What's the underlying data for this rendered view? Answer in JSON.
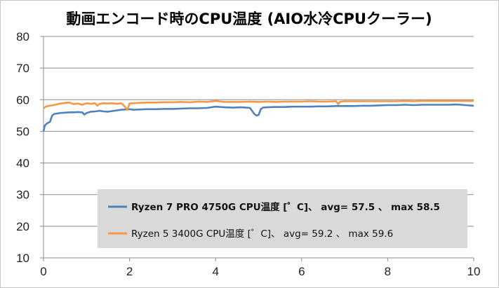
{
  "chart_data": {
    "type": "line",
    "title": "動画エンコード時のCPU温度 (AIO水冷CPUクーラー)",
    "xlabel": "",
    "ylabel": "",
    "xlim": [
      0,
      10
    ],
    "ylim": [
      10,
      80
    ],
    "x_ticks": [
      0,
      2,
      4,
      6,
      8,
      10
    ],
    "y_ticks": [
      10,
      20,
      30,
      40,
      50,
      60,
      70,
      80
    ],
    "grid": "horizontal",
    "legend_position": "bottom-right",
    "series": [
      {
        "name": "Ryzen 7 PRO 4750G CPU温度 [゜C]、 avg= 57.5 、 max 58.5",
        "color": "#4f81bd",
        "bold_legend": true,
        "x": [
          0,
          0.03,
          0.08,
          0.15,
          0.2,
          0.25,
          0.3,
          0.4,
          0.5,
          0.6,
          0.7,
          0.8,
          0.9,
          0.95,
          1.0,
          1.1,
          1.2,
          1.3,
          1.4,
          1.5,
          1.6,
          1.7,
          1.8,
          1.9,
          2.0,
          2.1,
          2.2,
          2.4,
          2.6,
          2.8,
          3.0,
          3.2,
          3.4,
          3.6,
          3.8,
          4.0,
          4.2,
          4.4,
          4.6,
          4.8,
          4.9,
          4.95,
          5.0,
          5.05,
          5.1,
          5.2,
          5.4,
          5.6,
          5.8,
          6.0,
          6.2,
          6.4,
          6.6,
          6.8,
          7.0,
          7.2,
          7.4,
          7.6,
          7.8,
          8.0,
          8.2,
          8.4,
          8.6,
          8.8,
          9.0,
          9.2,
          9.4,
          9.6,
          9.8,
          10.0
        ],
        "values": [
          50.0,
          51.8,
          52.5,
          53.0,
          55.0,
          55.5,
          55.6,
          55.8,
          55.9,
          56.0,
          56.0,
          56.1,
          56.0,
          55.3,
          55.8,
          56.2,
          56.3,
          56.5,
          56.3,
          56.2,
          56.4,
          56.6,
          56.8,
          56.9,
          57.0,
          56.8,
          56.9,
          57.0,
          57.0,
          57.1,
          57.1,
          57.2,
          57.3,
          57.3,
          57.4,
          57.8,
          57.6,
          57.5,
          57.6,
          57.4,
          55.5,
          55.0,
          55.2,
          57.0,
          57.5,
          57.6,
          57.7,
          57.7,
          57.8,
          57.8,
          57.8,
          57.9,
          57.9,
          58.0,
          58.0,
          58.0,
          58.1,
          58.1,
          58.2,
          58.3,
          58.3,
          58.4,
          58.3,
          58.4,
          58.4,
          58.4,
          58.4,
          58.5,
          58.3,
          58.1
        ]
      },
      {
        "name": "Ryzen 5 3400G CPU温度 [゜C]、 avg= 59.2 、 max 59.6",
        "color": "#f79646",
        "bold_legend": false,
        "x": [
          0,
          0.05,
          0.1,
          0.2,
          0.3,
          0.4,
          0.5,
          0.6,
          0.7,
          0.8,
          0.9,
          1.0,
          1.1,
          1.2,
          1.25,
          1.3,
          1.4,
          1.5,
          1.6,
          1.7,
          1.8,
          1.85,
          1.95,
          2.0,
          2.1,
          2.2,
          2.4,
          2.6,
          2.8,
          3.0,
          3.2,
          3.4,
          3.6,
          3.8,
          4.0,
          4.2,
          4.4,
          4.6,
          4.8,
          5.0,
          5.2,
          5.4,
          5.6,
          5.8,
          6.0,
          6.2,
          6.4,
          6.6,
          6.8,
          6.85,
          6.9,
          7.0,
          7.2,
          7.4,
          7.6,
          7.8,
          8.0,
          8.2,
          8.4,
          8.6,
          8.8,
          9.0,
          9.2,
          9.4,
          9.6,
          9.8,
          10.0
        ],
        "values": [
          57.2,
          57.8,
          58.0,
          58.2,
          58.5,
          58.8,
          59.0,
          59.1,
          58.6,
          58.8,
          58.4,
          58.9,
          58.7,
          58.9,
          58.1,
          58.7,
          58.9,
          58.8,
          58.9,
          58.7,
          58.9,
          58.4,
          56.8,
          58.8,
          58.9,
          59.0,
          59.1,
          59.1,
          59.2,
          59.2,
          59.3,
          59.2,
          59.4,
          59.3,
          59.6,
          59.3,
          59.3,
          59.3,
          59.4,
          59.3,
          59.4,
          59.3,
          59.4,
          59.4,
          59.4,
          59.5,
          59.4,
          59.4,
          59.5,
          58.6,
          59.4,
          59.5,
          59.5,
          59.5,
          59.5,
          59.5,
          59.5,
          59.5,
          59.6,
          59.5,
          59.6,
          59.6,
          59.6,
          59.6,
          59.6,
          59.6,
          59.6
        ]
      }
    ]
  }
}
